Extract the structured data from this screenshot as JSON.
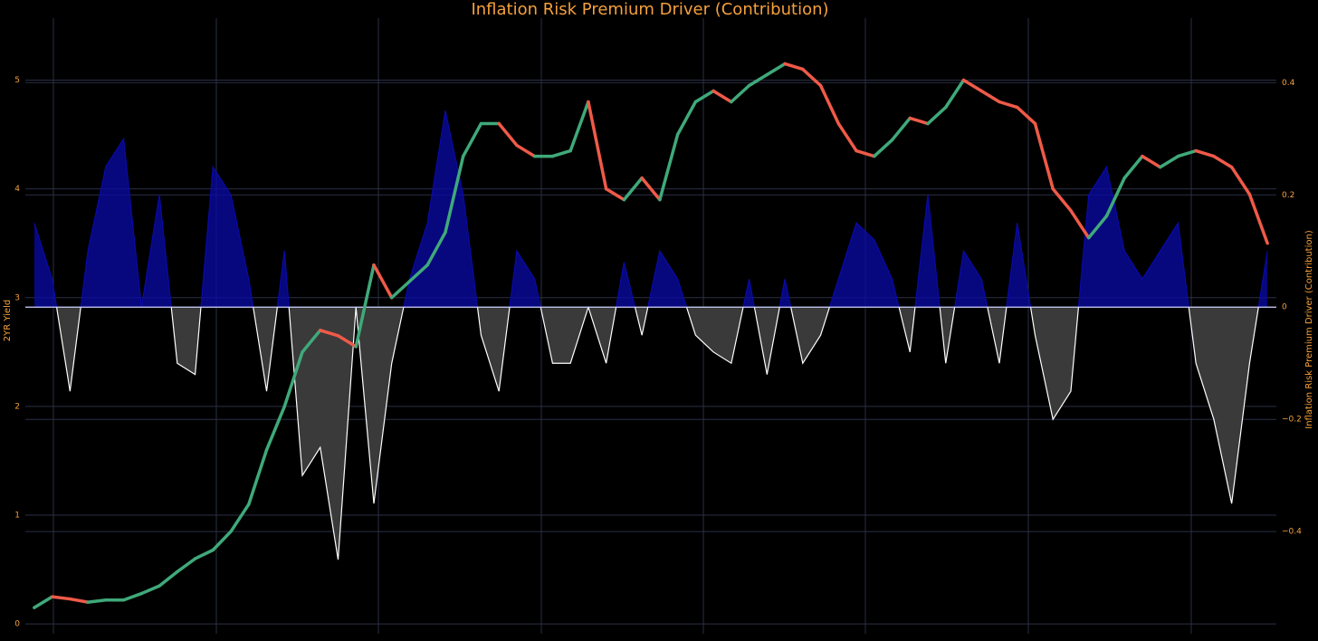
{
  "chart_data": {
    "type": "candlestick_area",
    "title": "Inflation Risk Premium Driver (Contribution)",
    "ylabel": "2YR Yield",
    "y2label": "Inflation Risk Premium Driver (Contribution)",
    "ylim": [
      -0.09,
      5.57
    ],
    "yticks": [
      0,
      1,
      2,
      3,
      4,
      5
    ],
    "y2lim": [
      -0.582,
      0.515
    ],
    "y2ticks": [
      {
        "value": -0.4,
        "label": "−0.4"
      },
      {
        "value": -0.2,
        "label": "−0.2"
      },
      0,
      0.2,
      0.4
    ],
    "grid": true,
    "series": [
      {
        "name": "2YR Yield",
        "type": "candlestick",
        "increasing_color": "#3fa97a",
        "decreasing_color": "#ef5a48",
        "values": [
          0.15,
          0.25,
          0.23,
          0.2,
          0.22,
          0.22,
          0.28,
          0.35,
          0.48,
          0.6,
          0.68,
          0.85,
          1.1,
          1.6,
          2.0,
          2.5,
          2.7,
          2.65,
          2.55,
          3.3,
          3.0,
          3.15,
          3.3,
          3.6,
          4.3,
          4.6,
          4.6,
          4.4,
          4.3,
          4.3,
          4.35,
          4.8,
          4.0,
          3.9,
          4.1,
          3.9,
          4.5,
          4.8,
          4.9,
          4.8,
          4.95,
          5.05,
          5.15,
          5.1,
          4.95,
          4.6,
          4.35,
          4.3,
          4.45,
          4.65,
          4.6,
          4.75,
          5.0,
          4.9,
          4.8,
          4.75,
          4.6,
          4.0,
          3.8,
          3.55,
          3.75,
          4.1,
          4.3,
          4.2,
          4.3,
          4.35,
          4.3,
          4.2,
          3.95,
          3.5
        ]
      },
      {
        "name": "Inflation Risk Premium Driver (Contribution)",
        "type": "area",
        "axis": "y2",
        "color": "#0a0aa8",
        "negative_color": "#ffffff",
        "negative_fill": "#3a3a3a",
        "values": [
          0.15,
          0.05,
          -0.15,
          0.1,
          0.25,
          0.3,
          0.0,
          0.2,
          -0.1,
          -0.12,
          0.25,
          0.2,
          0.05,
          -0.15,
          0.1,
          -0.3,
          -0.25,
          -0.45,
          0.0,
          -0.35,
          -0.1,
          0.05,
          0.15,
          0.35,
          0.2,
          -0.05,
          -0.15,
          0.1,
          0.05,
          -0.1,
          -0.1,
          0.0,
          -0.1,
          0.08,
          -0.05,
          0.1,
          0.05,
          -0.05,
          -0.08,
          -0.1,
          0.05,
          -0.12,
          0.05,
          -0.1,
          -0.05,
          0.05,
          0.15,
          0.12,
          0.05,
          -0.08,
          0.2,
          -0.1,
          0.1,
          0.05,
          -0.1,
          0.15,
          -0.05,
          -0.2,
          -0.15,
          0.2,
          0.25,
          0.1,
          0.05,
          0.1,
          0.15,
          -0.1,
          -0.2,
          -0.35,
          -0.1,
          0.1
        ]
      }
    ]
  }
}
